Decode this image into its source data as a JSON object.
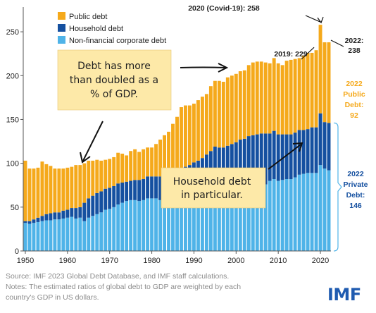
{
  "chart_data": {
    "type": "bar",
    "stacked": true,
    "x": [
      1950,
      1951,
      1952,
      1953,
      1954,
      1955,
      1956,
      1957,
      1958,
      1959,
      1960,
      1961,
      1962,
      1963,
      1964,
      1965,
      1966,
      1967,
      1968,
      1969,
      1970,
      1971,
      1972,
      1973,
      1974,
      1975,
      1976,
      1977,
      1978,
      1979,
      1980,
      1981,
      1982,
      1983,
      1984,
      1985,
      1986,
      1987,
      1988,
      1989,
      1990,
      1991,
      1992,
      1993,
      1994,
      1995,
      1996,
      1997,
      1998,
      1999,
      2000,
      2001,
      2002,
      2003,
      2004,
      2005,
      2006,
      2007,
      2008,
      2009,
      2010,
      2011,
      2012,
      2013,
      2014,
      2015,
      2016,
      2017,
      2018,
      2019,
      2020,
      2021,
      2022
    ],
    "series": [
      {
        "name": "Non-financial corporate debt",
        "color": "#4fb3e8",
        "values": [
          32,
          31,
          32,
          33,
          34,
          35,
          35,
          36,
          36,
          37,
          38,
          39,
          37,
          38,
          34,
          38,
          40,
          42,
          44,
          47,
          48,
          50,
          53,
          55,
          57,
          58,
          58,
          57,
          58,
          60,
          60,
          60,
          58,
          58,
          59,
          59,
          60,
          61,
          62,
          62,
          63,
          63,
          62,
          62,
          62,
          62,
          63,
          64,
          66,
          67,
          68,
          70,
          70,
          71,
          72,
          73,
          74,
          76,
          80,
          82,
          80,
          81,
          82,
          82,
          84,
          87,
          88,
          89,
          89,
          89,
          98,
          94,
          92
        ]
      },
      {
        "name": "Household debt",
        "color": "#1550a0",
        "values": [
          2,
          3,
          4,
          5,
          6,
          7,
          8,
          8,
          8,
          9,
          9,
          10,
          12,
          12,
          21,
          22,
          23,
          24,
          24,
          24,
          24,
          24,
          24,
          23,
          22,
          22,
          23,
          24,
          24,
          25,
          25,
          25,
          27,
          28,
          28,
          29,
          30,
          32,
          34,
          36,
          38,
          40,
          44,
          48,
          52,
          57,
          55,
          54,
          54,
          55,
          56,
          57,
          58,
          60,
          60,
          60,
          60,
          58,
          54,
          55,
          53,
          52,
          51,
          51,
          51,
          51,
          50,
          50,
          52,
          52,
          59,
          53,
          54
        ]
      },
      {
        "name": "Public debt",
        "color": "#f5a91b",
        "values": [
          69,
          60,
          58,
          57,
          62,
          57,
          54,
          50,
          50,
          48,
          48,
          47,
          49,
          48,
          45,
          43,
          40,
          38,
          35,
          33,
          33,
          33,
          35,
          33,
          30,
          34,
          35,
          32,
          34,
          33,
          33,
          37,
          42,
          46,
          49,
          57,
          63,
          71,
          70,
          68,
          67,
          69,
          70,
          69,
          74,
          75,
          76,
          75,
          78,
          78,
          78,
          78,
          78,
          81,
          83,
          83,
          82,
          81,
          80,
          83,
          81,
          79,
          84,
          85,
          84,
          82,
          85,
          87,
          85,
          88,
          101,
          91,
          92
        ]
      }
    ],
    "ylim": [
      0,
      275
    ],
    "yticks": [
      0,
      50,
      100,
      150,
      200,
      250
    ],
    "xticks": [
      1950,
      1960,
      1970,
      1980,
      1990,
      2000,
      2010,
      2020
    ],
    "xlim": [
      1950,
      2022
    ],
    "legend": {
      "position": "top-left"
    },
    "grid": false,
    "annotations": {
      "covid": "2020 (Covid-19): 258",
      "y2019": "2019: 229",
      "y2022_a": "2022:",
      "y2022_b": "238",
      "public_lines": [
        "2022",
        "Public",
        "Debt:",
        "92"
      ],
      "private_lines": [
        "2022",
        "Private",
        "Debt:",
        "146"
      ],
      "box_top_lines": [
        "Debt has more",
        "than doubled as a",
        "% of GDP."
      ],
      "box_household_lines": [
        "Household debt",
        "in particular."
      ]
    }
  },
  "footer": {
    "source": "Source: IMF 2023 Global Debt Database, and IMF staff calculations.",
    "notes1": "Notes: The estimated ratios of global debt to GDP are weighted by each",
    "notes2": "country's GDP in US dollars.",
    "logo": "IMF"
  },
  "colors": {
    "orange": "#f5a91b",
    "navy": "#1550a0",
    "sky": "#4fb3e8",
    "note_box": "#fde9a8"
  }
}
